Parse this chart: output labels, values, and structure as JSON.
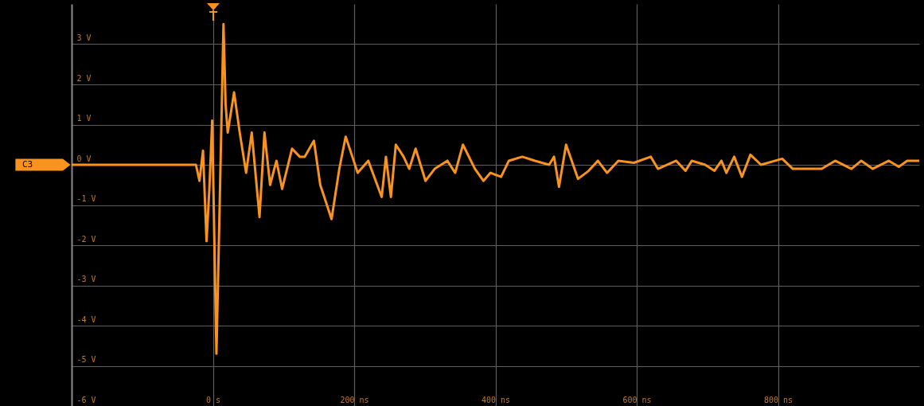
{
  "chart_data": {
    "type": "line",
    "x": [
      -200,
      -24,
      -19,
      -14,
      -9,
      -5,
      -1,
      5,
      9,
      15,
      18,
      21,
      30,
      38,
      47,
      55,
      66,
      73,
      81,
      90,
      98,
      112,
      123,
      130,
      143,
      152,
      168,
      179,
      188,
      205,
      220,
      239,
      245,
      252,
      259,
      270,
      278,
      287,
      301,
      314,
      332,
      343,
      354,
      371,
      383,
      393,
      408,
      419,
      438,
      456,
      476,
      483,
      490,
      500,
      517,
      532,
      545,
      558,
      574,
      596,
      620,
      630,
      656,
      669,
      678,
      697,
      710,
      720,
      727,
      738,
      749,
      761,
      776,
      806,
      821,
      862,
      881,
      904,
      918,
      934,
      957,
      971,
      983,
      1000
    ],
    "series": [
      {
        "name": "C3",
        "color": "#f7931e",
        "values": [
          0,
          0,
          -0.4,
          0.35,
          -1.9,
          -0.6,
          1.1,
          -4.7,
          -1.5,
          3.5,
          1.5,
          0.8,
          1.8,
          0.8,
          -0.2,
          0.8,
          -1.3,
          0.8,
          -0.5,
          0.1,
          -0.6,
          0.4,
          0.2,
          0.2,
          0.6,
          -0.5,
          -1.35,
          -0.1,
          0.7,
          -0.2,
          0.1,
          -0.8,
          0.2,
          -0.8,
          0.5,
          0.2,
          -0.1,
          0.4,
          -0.4,
          -0.1,
          0.1,
          -0.2,
          0.5,
          -0.1,
          -0.4,
          -0.2,
          -0.3,
          0.1,
          0.2,
          0.1,
          0,
          0.2,
          -0.55,
          0.5,
          -0.35,
          -0.15,
          0.1,
          -0.2,
          0.1,
          0.05,
          0.2,
          -0.1,
          0.1,
          -0.15,
          0.1,
          0,
          -0.15,
          0.1,
          -0.2,
          0.2,
          -0.3,
          0.25,
          0,
          0.15,
          -0.1,
          -0.1,
          0.1,
          -0.1,
          0.1,
          -0.1,
          0.1,
          -0.05,
          0.1,
          0.1
        ]
      }
    ],
    "xlim": [
      -200,
      1000
    ],
    "ylim": [
      -6,
      4
    ],
    "xticks": [
      {
        "value": 0,
        "label": "0 s"
      },
      {
        "value": 200,
        "label": "200 ns"
      },
      {
        "value": 400,
        "label": "400 ns"
      },
      {
        "value": 600,
        "label": "600 ns"
      },
      {
        "value": 800,
        "label": "800 ns"
      }
    ],
    "yticks": [
      {
        "value": -6,
        "label": "-6 V"
      },
      {
        "value": -5,
        "label": "-5 V"
      },
      {
        "value": -4,
        "label": "-4 V"
      },
      {
        "value": -3,
        "label": "-3 V"
      },
      {
        "value": -2,
        "label": "-2 V"
      },
      {
        "value": -1,
        "label": "-1 V"
      },
      {
        "value": 0,
        "label": "0 V"
      },
      {
        "value": 1,
        "label": "1 V"
      },
      {
        "value": 2,
        "label": "2 V"
      },
      {
        "value": 3,
        "label": "3 V"
      }
    ],
    "grid": true,
    "marker": "none",
    "line_style": "solid"
  }
}
